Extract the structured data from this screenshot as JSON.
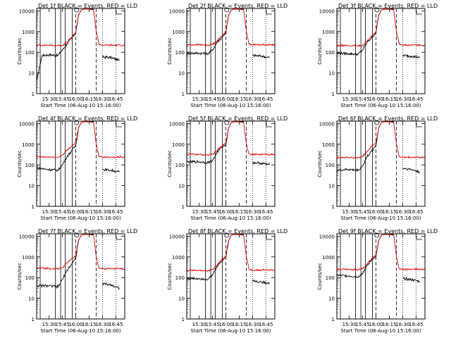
{
  "figure": {
    "common": {
      "xlabel": "Start Time (06-Aug-10 15:16:00)",
      "ylabel": "Counts/sec",
      "x_ticks": [
        "15:30",
        "15:45",
        "16:00",
        "16:15",
        "16:30",
        "16:45"
      ],
      "y_ticks": [
        "1",
        "10",
        "100",
        "1000",
        "10000"
      ],
      "title_middle": "BLACK = Events, RED = LLD"
    },
    "colors": {
      "events": "#000000",
      "lld": "#e00000"
    }
  },
  "chart_data": [
    {
      "type": "line",
      "title": "Det 1f BLACK = Events, RED = LLD",
      "detector": "Det 1f",
      "xlabel": "Start Time (06-Aug-10 15:16:00)",
      "ylabel": "Counts/sec",
      "y_scale": "log",
      "ylim": [
        1,
        13000
      ],
      "xlim": [
        "15:16",
        "16:55"
      ],
      "series": [
        {
          "name": "Events",
          "x": [
            "15:16",
            "15:22",
            "15:30",
            "15:40",
            "15:45",
            "15:50",
            "15:55",
            "16:00",
            "16:03",
            "16:06",
            "16:09",
            "16:20",
            "16:22",
            "16:30",
            "16:40",
            "16:49"
          ],
          "y": [
            4,
            70,
            75,
            70,
            130,
            250,
            450,
            900,
            6000,
            11000,
            12000,
            12000,
            "gap",
            60,
            55,
            40
          ]
        },
        {
          "name": "LLD",
          "x": [
            "15:16",
            "15:30",
            "15:40",
            "15:45",
            "15:50",
            "15:55",
            "16:00",
            "16:03",
            "16:06",
            "16:09",
            "16:15",
            "16:20",
            "16:23",
            "16:26",
            "16:30",
            "16:40",
            "16:55"
          ],
          "y": [
            220,
            220,
            210,
            220,
            300,
            500,
            900,
            6000,
            11000,
            12000,
            12000,
            11000,
            1000,
            250,
            220,
            220,
            220
          ]
        }
      ],
      "vlines_solid": [
        "15:20",
        "15:37",
        "15:43",
        "15:48",
        "15:56"
      ],
      "vlines_dashed": [
        "16:00",
        "16:23"
      ],
      "vlines_dotted": [
        "16:30",
        "16:45"
      ]
    },
    {
      "type": "line",
      "title": "Det 2f BLACK = Events, RED = LLD",
      "detector": "Det 2f",
      "xlabel": "Start Time (06-Aug-10 15:16:00)",
      "ylabel": "Counts/sec",
      "y_scale": "log",
      "ylim": [
        1,
        13000
      ],
      "xlim": [
        "15:16",
        "16:55"
      ],
      "series": [
        {
          "name": "Events",
          "x": [
            "15:16",
            "15:30",
            "15:40",
            "15:45",
            "15:50",
            "15:55",
            "16:00",
            "16:03",
            "16:06",
            "16:09",
            "16:20",
            "16:22",
            "16:30",
            "16:40",
            "16:49"
          ],
          "y": [
            90,
            90,
            85,
            130,
            300,
            500,
            900,
            6000,
            11000,
            12000,
            12000,
            "gap",
            70,
            65,
            55
          ]
        },
        {
          "name": "LLD",
          "x": [
            "15:16",
            "15:30",
            "15:40",
            "15:45",
            "15:50",
            "15:55",
            "16:00",
            "16:03",
            "16:06",
            "16:09",
            "16:15",
            "16:20",
            "16:23",
            "16:26",
            "16:30",
            "16:40",
            "16:55"
          ],
          "y": [
            230,
            230,
            220,
            240,
            350,
            600,
            1000,
            6000,
            11000,
            12000,
            12000,
            11000,
            1000,
            250,
            230,
            230,
            230
          ]
        }
      ],
      "vlines_solid": [
        "15:20",
        "15:37",
        "15:43",
        "15:48",
        "15:56"
      ],
      "vlines_dashed": [
        "16:00",
        "16:23"
      ],
      "vlines_dotted": [
        "16:30",
        "16:45"
      ]
    },
    {
      "type": "line",
      "title": "Det 3f BLACK = Events, RED = LLD",
      "detector": "Det 3f",
      "xlabel": "Start Time (06-Aug-10 15:16:00)",
      "ylabel": "Counts/sec",
      "y_scale": "log",
      "ylim": [
        1,
        13000
      ],
      "xlim": [
        "15:16",
        "16:55"
      ],
      "series": [
        {
          "name": "Events",
          "x": [
            "15:16",
            "15:30",
            "15:40",
            "15:45",
            "15:50",
            "15:55",
            "16:00",
            "16:03",
            "16:06",
            "16:09",
            "16:20",
            "16:22",
            "16:30",
            "16:40",
            "16:49"
          ],
          "y": [
            90,
            85,
            80,
            130,
            300,
            500,
            900,
            6000,
            11000,
            12000,
            12000,
            "gap",
            70,
            65,
            55
          ]
        },
        {
          "name": "LLD",
          "x": [
            "15:16",
            "15:30",
            "15:40",
            "15:45",
            "15:50",
            "15:55",
            "16:00",
            "16:03",
            "16:06",
            "16:09",
            "16:15",
            "16:20",
            "16:23",
            "16:26",
            "16:30",
            "16:40",
            "16:55"
          ],
          "y": [
            210,
            210,
            200,
            220,
            350,
            600,
            1000,
            6000,
            11000,
            12000,
            12000,
            11000,
            1000,
            250,
            220,
            220,
            220
          ]
        }
      ],
      "vlines_solid": [
        "15:20",
        "15:37",
        "15:43",
        "15:48",
        "15:56"
      ],
      "vlines_dashed": [
        "16:00",
        "16:23"
      ],
      "vlines_dotted": [
        "16:30",
        "16:45"
      ]
    },
    {
      "type": "line",
      "title": "Det 4f BLACK = Events, RED = LLD",
      "detector": "Det 4f",
      "xlabel": "Start Time (06-Aug-10 15:16:00)",
      "ylabel": "Counts/sec",
      "y_scale": "log",
      "ylim": [
        1,
        13000
      ],
      "xlim": [
        "15:16",
        "16:55"
      ],
      "series": [
        {
          "name": "Events",
          "x": [
            "15:16",
            "15:30",
            "15:40",
            "15:45",
            "15:50",
            "15:55",
            "16:00",
            "16:03",
            "16:06",
            "16:09",
            "16:20",
            "16:22",
            "16:30",
            "16:40",
            "16:49"
          ],
          "y": [
            70,
            60,
            55,
            100,
            250,
            450,
            900,
            6000,
            11000,
            12000,
            12000,
            "gap",
            60,
            55,
            45
          ]
        },
        {
          "name": "LLD",
          "x": [
            "15:16",
            "15:30",
            "15:40",
            "15:45",
            "15:50",
            "15:55",
            "16:00",
            "16:03",
            "16:06",
            "16:09",
            "16:15",
            "16:20",
            "16:23",
            "16:26",
            "16:30",
            "16:40",
            "16:55"
          ],
          "y": [
            240,
            240,
            230,
            300,
            500,
            800,
            1200,
            6000,
            11000,
            12000,
            12000,
            11000,
            1000,
            250,
            240,
            240,
            240
          ]
        }
      ],
      "vlines_solid": [
        "15:20",
        "15:37",
        "15:43",
        "15:48",
        "15:56"
      ],
      "vlines_dashed": [
        "16:00",
        "16:23"
      ],
      "vlines_dotted": [
        "16:30",
        "16:45"
      ]
    },
    {
      "type": "line",
      "title": "Det 5f BLACK = Events, RED = LLD",
      "detector": "Det 5f",
      "xlabel": "Start Time (06-Aug-10 15:16:00)",
      "ylabel": "Counts/sec",
      "y_scale": "log",
      "ylim": [
        1,
        13000
      ],
      "xlim": [
        "15:16",
        "16:55"
      ],
      "series": [
        {
          "name": "Events",
          "x": [
            "15:16",
            "15:30",
            "15:40",
            "15:45",
            "15:50",
            "15:55",
            "16:00",
            "16:03",
            "16:06",
            "16:09",
            "16:20",
            "16:22",
            "16:30",
            "16:40",
            "16:49"
          ],
          "y": [
            140,
            140,
            130,
            160,
            400,
            700,
            1000,
            6000,
            11000,
            12000,
            12000,
            "gap",
            130,
            120,
            100
          ]
        },
        {
          "name": "LLD",
          "x": [
            "15:16",
            "15:30",
            "15:40",
            "15:45",
            "15:50",
            "15:55",
            "16:00",
            "16:03",
            "16:06",
            "16:09",
            "16:15",
            "16:20",
            "16:23",
            "16:26",
            "16:30",
            "16:40",
            "16:55"
          ],
          "y": [
            330,
            320,
            300,
            320,
            500,
            800,
            1200,
            6000,
            11000,
            12000,
            12000,
            11000,
            1000,
            350,
            320,
            320,
            320
          ]
        }
      ],
      "vlines_solid": [
        "15:20",
        "15:37",
        "15:43",
        "15:48",
        "15:56"
      ],
      "vlines_dashed": [
        "16:00",
        "16:23"
      ],
      "vlines_dotted": [
        "16:30",
        "16:45"
      ]
    },
    {
      "type": "line",
      "title": "Det 6f BLACK = Events, RED = LLD",
      "detector": "Det 6f",
      "xlabel": "Start Time (06-Aug-10 15:16:00)",
      "ylabel": "Counts/sec",
      "y_scale": "log",
      "ylim": [
        1,
        13000
      ],
      "xlim": [
        "15:16",
        "16:55"
      ],
      "series": [
        {
          "name": "Events",
          "x": [
            "15:16",
            "15:30",
            "15:40",
            "15:45",
            "15:50",
            "15:55",
            "16:00",
            "16:03",
            "16:06",
            "16:09",
            "16:20",
            "16:22",
            "16:30",
            "16:40",
            "16:49"
          ],
          "y": [
            55,
            60,
            55,
            90,
            250,
            450,
            900,
            6000,
            11000,
            12000,
            12000,
            "gap",
            70,
            60,
            45
          ]
        },
        {
          "name": "LLD",
          "x": [
            "15:16",
            "15:30",
            "15:40",
            "15:45",
            "15:50",
            "15:55",
            "16:00",
            "16:03",
            "16:06",
            "16:09",
            "16:15",
            "16:20",
            "16:23",
            "16:26",
            "16:30",
            "16:40",
            "16:55"
          ],
          "y": [
            230,
            230,
            220,
            260,
            450,
            800,
            1200,
            6000,
            11000,
            12000,
            12000,
            11000,
            1000,
            250,
            230,
            230,
            230
          ]
        }
      ],
      "vlines_solid": [
        "15:20",
        "15:37",
        "15:43",
        "15:48",
        "15:56"
      ],
      "vlines_dashed": [
        "16:00",
        "16:23"
      ],
      "vlines_dotted": [
        "16:30",
        "16:45"
      ]
    },
    {
      "type": "line",
      "title": "Det 7f BLACK = Events, RED = LLD",
      "detector": "Det 7f",
      "xlabel": "Start Time (06-Aug-10 15:16:00)",
      "ylabel": "Counts/sec",
      "y_scale": "log",
      "ylim": [
        1,
        13000
      ],
      "xlim": [
        "15:16",
        "16:55"
      ],
      "series": [
        {
          "name": "Events",
          "x": [
            "15:16",
            "15:30",
            "15:40",
            "15:45",
            "15:50",
            "15:55",
            "16:00",
            "16:03",
            "16:06",
            "16:09",
            "16:20",
            "16:22",
            "16:30",
            "16:40",
            "16:49"
          ],
          "y": [
            40,
            40,
            35,
            80,
            220,
            420,
            900,
            6000,
            11000,
            12000,
            12000,
            "gap",
            50,
            45,
            30
          ]
        },
        {
          "name": "LLD",
          "x": [
            "15:16",
            "15:30",
            "15:40",
            "15:45",
            "15:50",
            "15:55",
            "16:00",
            "16:03",
            "16:06",
            "16:09",
            "16:15",
            "16:20",
            "16:23",
            "16:26",
            "16:30",
            "16:40",
            "16:55"
          ],
          "y": [
            280,
            280,
            260,
            300,
            500,
            800,
            1200,
            6000,
            11000,
            12000,
            12000,
            11000,
            1000,
            280,
            270,
            270,
            270
          ]
        }
      ],
      "vlines_solid": [
        "15:20",
        "15:37",
        "15:43",
        "15:48",
        "15:56"
      ],
      "vlines_dashed": [
        "16:00",
        "16:23"
      ],
      "vlines_dotted": [
        "16:30",
        "16:45"
      ]
    },
    {
      "type": "line",
      "title": "Det 8f BLACK = Events, RED = LLD",
      "detector": "Det 8f",
      "xlabel": "Start Time (06-Aug-10 15:16:00)",
      "ylabel": "Counts/sec",
      "y_scale": "log",
      "ylim": [
        1,
        13000
      ],
      "xlim": [
        "15:16",
        "16:55"
      ],
      "series": [
        {
          "name": "Events",
          "x": [
            "15:16",
            "15:30",
            "15:40",
            "15:45",
            "15:50",
            "15:55",
            "16:00",
            "16:03",
            "16:06",
            "16:09",
            "16:20",
            "16:22",
            "16:30",
            "16:40",
            "16:49"
          ],
          "y": [
            90,
            90,
            85,
            130,
            350,
            600,
            1000,
            6000,
            11000,
            12000,
            12000,
            "gap",
            70,
            60,
            55
          ]
        },
        {
          "name": "LLD",
          "x": [
            "15:16",
            "15:30",
            "15:40",
            "15:45",
            "15:50",
            "15:55",
            "16:00",
            "16:03",
            "16:06",
            "16:09",
            "16:15",
            "16:20",
            "16:23",
            "16:26",
            "16:30",
            "16:40",
            "16:55"
          ],
          "y": [
            220,
            220,
            210,
            240,
            400,
            700,
            1100,
            6000,
            11000,
            12000,
            12000,
            11000,
            1000,
            250,
            230,
            230,
            230
          ]
        }
      ],
      "vlines_solid": [
        "15:20",
        "15:37",
        "15:43",
        "15:48",
        "15:56"
      ],
      "vlines_dashed": [
        "16:00",
        "16:23"
      ],
      "vlines_dotted": [
        "16:30",
        "16:45"
      ]
    },
    {
      "type": "line",
      "title": "Det 9f BLACK = Events, RED = LLD",
      "detector": "Det 9f",
      "xlabel": "Start Time (06-Aug-10 15:16:00)",
      "ylabel": "Counts/sec",
      "y_scale": "log",
      "ylim": [
        1,
        13000
      ],
      "xlim": [
        "15:16",
        "16:55"
      ],
      "series": [
        {
          "name": "Events",
          "x": [
            "15:16",
            "15:30",
            "15:40",
            "15:45",
            "15:50",
            "15:55",
            "16:00",
            "16:03",
            "16:06",
            "16:09",
            "16:20",
            "16:22",
            "16:30",
            "16:40",
            "16:49"
          ],
          "y": [
            130,
            120,
            110,
            150,
            400,
            700,
            1000,
            6000,
            11000,
            12000,
            12000,
            "gap",
            90,
            80,
            65
          ]
        },
        {
          "name": "LLD",
          "x": [
            "15:16",
            "15:30",
            "15:40",
            "15:45",
            "15:50",
            "15:55",
            "16:00",
            "16:03",
            "16:06",
            "16:09",
            "16:15",
            "16:20",
            "16:23",
            "16:26",
            "16:30",
            "16:40",
            "16:55"
          ],
          "y": [
            250,
            250,
            240,
            270,
            450,
            800,
            1200,
            6000,
            11000,
            12000,
            12000,
            11000,
            1000,
            270,
            250,
            250,
            250
          ]
        }
      ],
      "vlines_solid": [
        "15:20",
        "15:37",
        "15:43",
        "15:48",
        "15:56"
      ],
      "vlines_dashed": [
        "16:00",
        "16:23"
      ],
      "vlines_dotted": [
        "16:30",
        "16:45"
      ]
    }
  ]
}
